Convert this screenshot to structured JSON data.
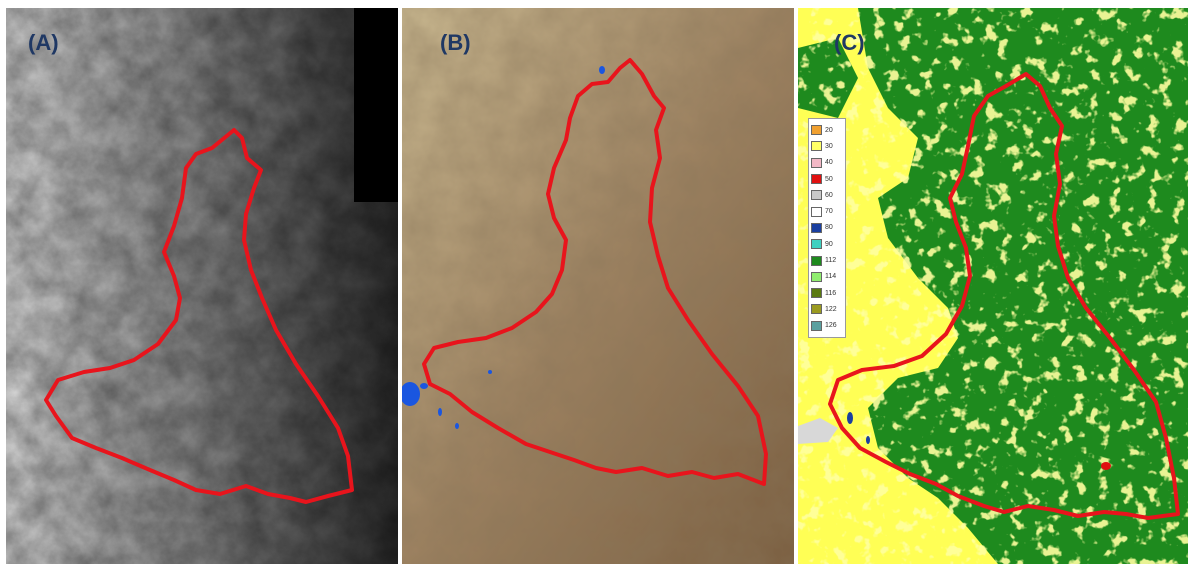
{
  "panels": [
    {
      "id": "A",
      "label": "(A)"
    },
    {
      "id": "B",
      "label": "(B)"
    },
    {
      "id": "C",
      "label": "(C)"
    }
  ],
  "legend": {
    "items": [
      {
        "code": "20",
        "color": "#f0a030"
      },
      {
        "code": "30",
        "color": "#ffff66"
      },
      {
        "code": "40",
        "color": "#f2b8c6"
      },
      {
        "code": "50",
        "color": "#e01010"
      },
      {
        "code": "60",
        "color": "#c8c8c8"
      },
      {
        "code": "70",
        "color": "#ffffff"
      },
      {
        "code": "80",
        "color": "#1a3fa0"
      },
      {
        "code": "90",
        "color": "#40d0c0"
      },
      {
        "code": "112",
        "color": "#1e8a1e"
      },
      {
        "code": "114",
        "color": "#90ee70"
      },
      {
        "code": "116",
        "color": "#5a7a10"
      },
      {
        "code": "122",
        "color": "#9a9a20"
      },
      {
        "code": "126",
        "color": "#5aa0a0"
      }
    ]
  },
  "colors": {
    "boundary": "#e8141c",
    "label": "#1f3864",
    "water": "#1a56e0",
    "forest": "#1e8a1e",
    "grassland": "#ffff55"
  }
}
